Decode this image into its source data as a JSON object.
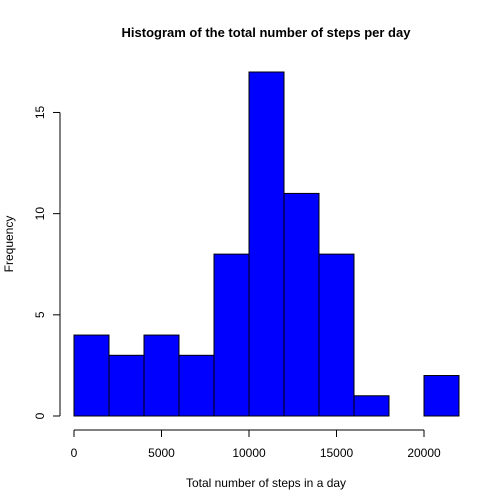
{
  "chart_data": {
    "type": "bar",
    "title": "Histogram of the total number of steps per day",
    "xlabel": "Total number of steps in a day",
    "ylabel": "Frequency",
    "bin_edges": [
      0,
      2000,
      4000,
      6000,
      8000,
      10000,
      12000,
      14000,
      16000,
      18000,
      20000,
      22000
    ],
    "values": [
      4,
      3,
      4,
      3,
      8,
      17,
      11,
      8,
      1,
      0,
      2
    ],
    "xlim": [
      0,
      22000
    ],
    "ylim": [
      0,
      17
    ],
    "x_ticks": [
      0,
      5000,
      10000,
      15000,
      20000
    ],
    "y_ticks": [
      0,
      5,
      10,
      15
    ],
    "bar_color": "#0000ff",
    "grid": false
  }
}
